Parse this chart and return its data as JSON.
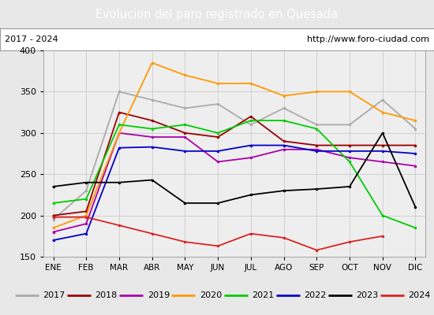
{
  "title": "Evolucion del paro registrado en Quesada",
  "title_color": "#ffffff",
  "title_bg": "#5b9bd5",
  "subtitle_left": "2017 - 2024",
  "subtitle_right": "http://www.foro-ciudad.com",
  "months": [
    "ENE",
    "FEB",
    "MAR",
    "ABR",
    "MAY",
    "JUN",
    "JUL",
    "AGO",
    "SEP",
    "OCT",
    "NOV",
    "DIC"
  ],
  "ylim": [
    150,
    400
  ],
  "yticks": [
    150,
    200,
    250,
    300,
    350,
    400
  ],
  "series": {
    "2017": {
      "color": "#aaaaaa",
      "data": [
        195,
        230,
        350,
        340,
        330,
        335,
        310,
        330,
        310,
        310,
        340,
        305
      ]
    },
    "2018": {
      "color": "#990000",
      "data": [
        200,
        205,
        325,
        315,
        300,
        295,
        320,
        290,
        285,
        285,
        285,
        285
      ]
    },
    "2019": {
      "color": "#aa00aa",
      "data": [
        180,
        190,
        300,
        295,
        295,
        265,
        270,
        280,
        280,
        270,
        265,
        260
      ]
    },
    "2020": {
      "color": "#ff9900",
      "data": [
        185,
        200,
        300,
        385,
        370,
        360,
        360,
        345,
        350,
        350,
        325,
        315
      ]
    },
    "2021": {
      "color": "#00cc00",
      "data": [
        215,
        220,
        310,
        305,
        310,
        300,
        315,
        315,
        305,
        265,
        200,
        185
      ]
    },
    "2022": {
      "color": "#0000cc",
      "data": [
        170,
        178,
        282,
        283,
        278,
        278,
        285,
        285,
        278,
        278,
        278,
        275
      ]
    },
    "2023": {
      "color": "#000000",
      "data": [
        235,
        240,
        240,
        243,
        215,
        215,
        225,
        230,
        232,
        235,
        300,
        210
      ]
    },
    "2024": {
      "color": "#dd2222",
      "data": [
        198,
        198,
        188,
        178,
        168,
        163,
        178,
        173,
        158,
        168,
        175,
        null
      ]
    }
  },
  "bg_color": "#e8e8e8",
  "plot_bg": "#eeeeee",
  "grid_color": "#cccccc"
}
